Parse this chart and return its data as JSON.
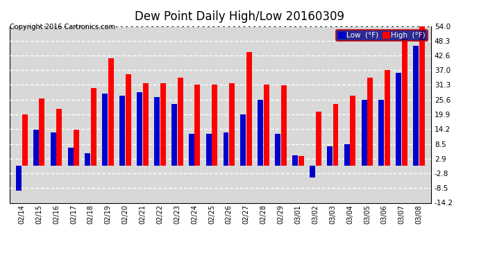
{
  "title": "Dew Point Daily High/Low 20160309",
  "copyright": "Copyright 2016 Cartronics.com",
  "dates": [
    "02/14",
    "02/15",
    "02/16",
    "02/17",
    "02/18",
    "02/19",
    "02/20",
    "02/21",
    "02/22",
    "02/23",
    "02/24",
    "02/25",
    "02/26",
    "02/27",
    "02/28",
    "02/29",
    "03/01",
    "03/02",
    "03/03",
    "03/04",
    "03/05",
    "03/06",
    "03/07",
    "03/08"
  ],
  "high": [
    19.9,
    26.0,
    22.0,
    14.0,
    30.0,
    41.5,
    35.5,
    32.0,
    32.0,
    34.0,
    31.5,
    31.5,
    32.0,
    44.0,
    31.3,
    31.0,
    3.9,
    21.0,
    24.0,
    27.0,
    34.0,
    37.0,
    49.0,
    54.0
  ],
  "low": [
    -9.5,
    14.0,
    13.0,
    7.0,
    5.0,
    28.0,
    27.0,
    28.5,
    26.5,
    24.0,
    12.5,
    12.5,
    13.0,
    20.0,
    25.6,
    12.5,
    4.0,
    -4.5,
    7.5,
    8.5,
    25.6,
    25.6,
    36.0,
    46.5
  ],
  "high_color": "#ff0000",
  "low_color": "#0000cc",
  "bg_color": "#ffffff",
  "plot_bg_color": "#d8d8d8",
  "grid_color": "#ffffff",
  "ylim": [
    -14.2,
    54.0
  ],
  "yticks": [
    -14.2,
    -8.5,
    -2.8,
    2.9,
    8.5,
    14.2,
    19.9,
    25.6,
    31.3,
    37.0,
    42.6,
    48.3,
    54.0
  ],
  "title_fontsize": 12,
  "copyright_fontsize": 7,
  "legend_label_low": "Low  (°F)",
  "legend_label_high": "High  (°F)"
}
